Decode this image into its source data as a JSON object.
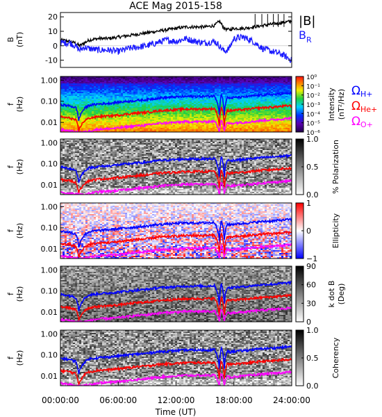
{
  "title": "ACE Mag 2015-158",
  "colors": {
    "B_total": "#000000",
    "B_R": "#1a1aff",
    "omega_H": "#0000ff",
    "omega_He": "#ff0000",
    "omega_O": "#ff00ff"
  },
  "time_axis": {
    "label": "Time (UT)",
    "ticks": [
      "00:00:00",
      "06:00:00",
      "12:00:00",
      "18:00:00",
      "24:00:00"
    ],
    "tick_hours": [
      0,
      6,
      12,
      18,
      24
    ]
  },
  "freq_axis": {
    "label_top": "f",
    "label_bottom": "(Hz)",
    "ticks": [
      "1.00",
      "0.10",
      "0.01"
    ],
    "tick_values": [
      1.0,
      0.1,
      0.01
    ],
    "range": [
      0.0035,
      1.5
    ],
    "scale": "log"
  },
  "legend": {
    "omega_H": {
      "symbol": "Ω",
      "sub": "H+"
    },
    "omega_He": {
      "symbol": "Ω",
      "sub": "He+"
    },
    "omega_O": {
      "symbol": "Ω",
      "sub": "O+"
    }
  },
  "chart_data": [
    {
      "type": "line",
      "ylabel_top": "B",
      "ylabel_bottom": "(nT)",
      "ylim": [
        -15,
        23
      ],
      "yticks": [
        20,
        10,
        0,
        -10
      ],
      "xlim": [
        0,
        24
      ],
      "series": [
        {
          "name": "|B|",
          "x": [
            0,
            1,
            1.5,
            2,
            2.5,
            3,
            4,
            5,
            6,
            7,
            8,
            9,
            10,
            11,
            12,
            13,
            14,
            15,
            16,
            16.5,
            17,
            17.5,
            18,
            19,
            20,
            21,
            22,
            23,
            24
          ],
          "values": [
            4,
            3,
            2,
            0,
            2,
            4,
            5,
            5,
            6,
            7,
            8,
            9,
            10,
            11,
            12,
            13,
            13,
            13,
            14,
            17,
            12,
            11,
            12,
            12,
            13,
            14,
            15,
            16,
            17
          ]
        },
        {
          "name": "B_R",
          "x": [
            0,
            1,
            1.5,
            2,
            2.5,
            3,
            4,
            5,
            6,
            7,
            8,
            9,
            10,
            11,
            12,
            13,
            14,
            15,
            16,
            16.5,
            17,
            17.5,
            18,
            19,
            20,
            21,
            22,
            23,
            24
          ],
          "values": [
            2,
            2,
            0,
            -3,
            -1,
            -2,
            -3,
            -3,
            -4,
            -2,
            -1,
            0,
            2,
            4,
            3,
            5,
            3,
            2,
            3,
            0,
            -4,
            -2,
            5,
            6,
            3,
            -2,
            -4,
            -6,
            -10
          ]
        }
      ]
    },
    {
      "type": "heatmap",
      "quantity": "Intensity",
      "colorbar_label_top": "Intensity",
      "colorbar_label_bottom": "(nT²/Hz)",
      "colorbar_ticks": [
        "10⁰",
        "10⁻¹",
        "10⁻²",
        "10⁻³",
        "10⁻⁴",
        "10⁻⁵",
        "10⁻⁶"
      ],
      "clim": [
        -6,
        0
      ],
      "scale": "log",
      "colormap": "rainbow"
    },
    {
      "type": "heatmap",
      "quantity": "% Polarization",
      "colorbar_label_top": "% Polarization",
      "colorbar_label_bottom": "",
      "colorbar_ticks": [
        "1.0",
        "0.5",
        "0.0"
      ],
      "clim": [
        0,
        1
      ],
      "colormap": "gray"
    },
    {
      "type": "heatmap",
      "quantity": "Ellipticity",
      "colorbar_label_top": "Ellipticity",
      "colorbar_label_bottom": "",
      "colorbar_ticks": [
        "1",
        "0",
        "−1"
      ],
      "clim": [
        -1,
        1
      ],
      "colormap": "blue-white-red"
    },
    {
      "type": "heatmap",
      "quantity": "k dot B",
      "colorbar_label_top": "k dot B",
      "colorbar_label_bottom": "(Deg)",
      "colorbar_ticks": [
        "90",
        "60",
        "30",
        "0"
      ],
      "clim": [
        0,
        90
      ],
      "colormap": "gray"
    },
    {
      "type": "heatmap",
      "quantity": "Coherency",
      "colorbar_label_top": "Coherency",
      "colorbar_label_bottom": "",
      "colorbar_ticks": [
        "1.0",
        "0.5",
        "0.0"
      ],
      "clim": [
        0,
        1
      ],
      "colormap": "gray"
    }
  ],
  "gyro_lines": {
    "x": [
      0,
      1,
      1.6,
      1.9,
      2.2,
      2.6,
      3,
      4,
      5,
      6,
      7,
      8,
      9,
      10,
      11,
      12,
      13,
      14,
      15,
      16,
      16.5,
      16.7,
      17,
      17.3,
      17.6,
      18,
      19,
      20,
      21,
      22,
      23,
      24
    ],
    "omega_H": [
      0.07,
      0.06,
      0.05,
      0.012,
      0.03,
      0.05,
      0.065,
      0.075,
      0.08,
      0.09,
      0.1,
      0.11,
      0.12,
      0.14,
      0.15,
      0.16,
      0.17,
      0.17,
      0.17,
      0.18,
      0.02,
      0.22,
      0.02,
      0.15,
      0.14,
      0.15,
      0.16,
      0.18,
      0.2,
      0.21,
      0.23,
      0.25
    ],
    "omega_He": [
      0.018,
      0.016,
      0.013,
      0.004,
      0.008,
      0.013,
      0.016,
      0.019,
      0.02,
      0.022,
      0.025,
      0.028,
      0.03,
      0.035,
      0.038,
      0.04,
      0.043,
      0.043,
      0.043,
      0.045,
      0.006,
      0.055,
      0.006,
      0.038,
      0.035,
      0.038,
      0.04,
      0.045,
      0.05,
      0.053,
      0.058,
      0.063
    ],
    "omega_O": [
      0.0045,
      0.004,
      0.0035,
      0.0035,
      0.0035,
      0.0035,
      0.004,
      0.0048,
      0.005,
      0.0055,
      0.0062,
      0.007,
      0.0075,
      0.0088,
      0.0095,
      0.01,
      0.0108,
      0.0108,
      0.0108,
      0.0112,
      0.0036,
      0.0138,
      0.0036,
      0.0095,
      0.0088,
      0.0095,
      0.01,
      0.0112,
      0.0125,
      0.0133,
      0.0145,
      0.016
    ]
  }
}
